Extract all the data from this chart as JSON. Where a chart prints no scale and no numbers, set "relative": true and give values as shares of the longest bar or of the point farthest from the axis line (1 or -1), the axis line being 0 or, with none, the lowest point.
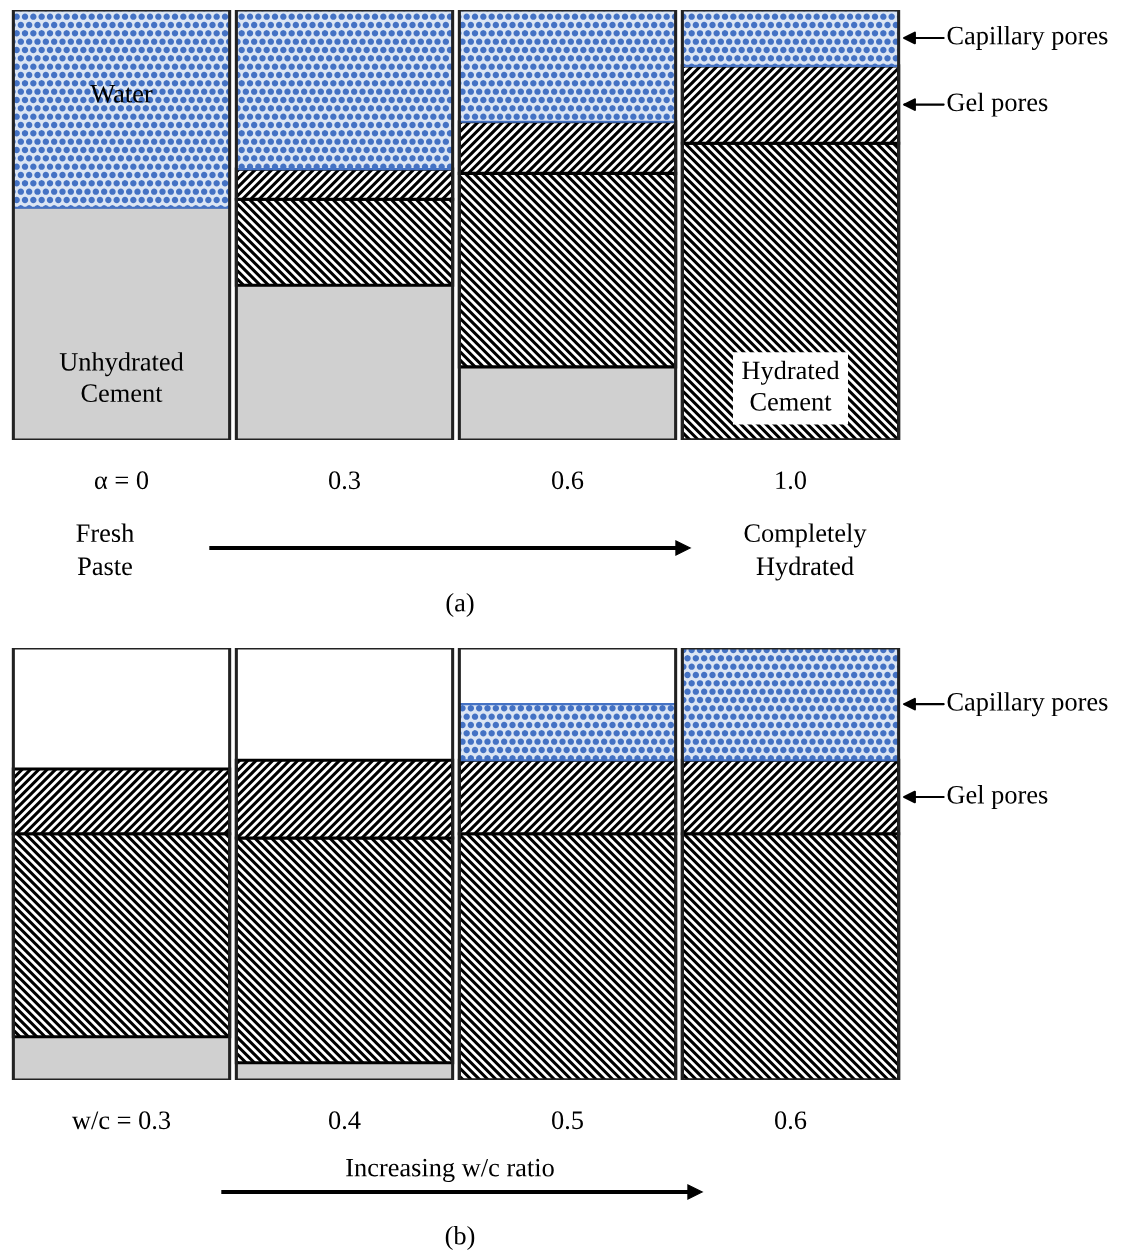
{
  "chart_data": [
    {
      "type": "bar",
      "stacked": true,
      "relative": true,
      "categories": [
        "α = 0",
        "0.3",
        "0.6",
        "1.0"
      ],
      "series": [
        {
          "color": "#d0d0d0",
          "values": [
            0.54,
            0.36,
            0.17,
            0
          ]
        },
        {
          "color": "#000000",
          "values": [
            0,
            0.2,
            0.45,
            0.69
          ]
        },
        {
          "name": "Gel pores",
          "color": "#000000",
          "values": [
            0,
            0.07,
            0.12,
            0.18
          ]
        },
        {
          "name": "Capillary pores",
          "color": "#4472c4",
          "values": [
            0.46,
            0.37,
            0.26,
            0.13
          ]
        }
      ],
      "annotations": [
        "Water",
        "Unhydrated\nCement",
        "Hydrated\nCement",
        "Fresh\nPaste",
        "Completely\nHydrated",
        "(a)"
      ]
    },
    {
      "type": "bar",
      "stacked": true,
      "relative": true,
      "categories": [
        "w/c = 0.3",
        "0.4",
        "0.5",
        "0.6"
      ],
      "series": [
        {
          "color": "#d0d0d0",
          "values": [
            0.1,
            0.04,
            0,
            0
          ]
        },
        {
          "color": "#000000",
          "values": [
            0.47,
            0.52,
            0.57,
            0.57
          ]
        },
        {
          "name": "Gel pores",
          "color": "#000000",
          "values": [
            0.15,
            0.18,
            0.17,
            0.17
          ]
        },
        {
          "name": "Capillary pores",
          "color": "#4472c4",
          "values": [
            0,
            0,
            0.13,
            0.26
          ]
        }
      ],
      "annotations": [
        "Increasing w/c ratio",
        "(b)"
      ]
    }
  ]
}
